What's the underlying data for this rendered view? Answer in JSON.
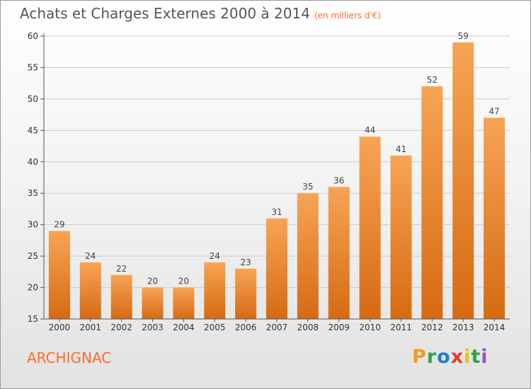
{
  "title": "Achats et Charges Externes 2000 à 2014",
  "unit": "(en milliers d'€)",
  "commune": "ARCHIGNAC",
  "brand": {
    "letters": [
      "P",
      "r",
      "o",
      "x",
      "i",
      "t",
      "i"
    ],
    "colors": [
      "#f39a1e",
      "#2fa34a",
      "#1f7fd1",
      "#e63a2e",
      "#e8c21a",
      "#2fa34a",
      "#9b4fc4"
    ]
  },
  "colors": {
    "bar_top": "#f7a455",
    "bar_bottom": "#d66a12",
    "grid": "#cccccc"
  },
  "chart_data": {
    "type": "bar",
    "categories": [
      "2000",
      "2001",
      "2002",
      "2003",
      "2004",
      "2005",
      "2006",
      "2007",
      "2008",
      "2009",
      "2010",
      "2011",
      "2012",
      "2013",
      "2014"
    ],
    "values": [
      29,
      24,
      22,
      20,
      20,
      24,
      23,
      31,
      35,
      36,
      44,
      41,
      52,
      59,
      47
    ],
    "ylim": [
      15,
      60
    ],
    "yticks": [
      "15",
      "20",
      "25",
      "30",
      "35",
      "40",
      "45",
      "50",
      "55",
      "60"
    ],
    "grid": true
  }
}
